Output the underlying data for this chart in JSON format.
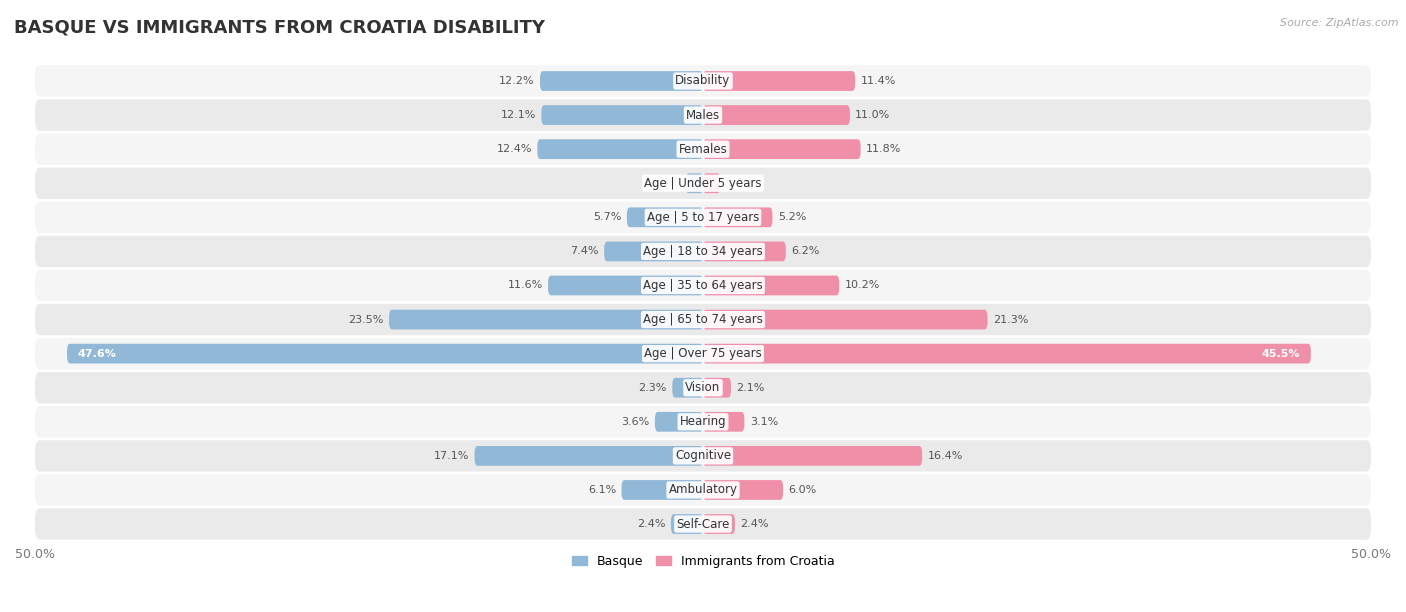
{
  "title": "BASQUE VS IMMIGRANTS FROM CROATIA DISABILITY",
  "source": "Source: ZipAtlas.com",
  "categories": [
    "Disability",
    "Males",
    "Females",
    "Age | Under 5 years",
    "Age | 5 to 17 years",
    "Age | 18 to 34 years",
    "Age | 35 to 64 years",
    "Age | 65 to 74 years",
    "Age | Over 75 years",
    "Vision",
    "Hearing",
    "Cognitive",
    "Ambulatory",
    "Self-Care"
  ],
  "basque_values": [
    12.2,
    12.1,
    12.4,
    1.3,
    5.7,
    7.4,
    11.6,
    23.5,
    47.6,
    2.3,
    3.6,
    17.1,
    6.1,
    2.4
  ],
  "croatia_values": [
    11.4,
    11.0,
    11.8,
    1.3,
    5.2,
    6.2,
    10.2,
    21.3,
    45.5,
    2.1,
    3.1,
    16.4,
    6.0,
    2.4
  ],
  "basque_color": "#92b8d8",
  "croatia_color": "#f090a8",
  "basque_label": "Basque",
  "croatia_label": "Immigrants from Croatia",
  "max_scale": 50.0,
  "axis_label_left": "50.0%",
  "axis_label_right": "50.0%",
  "bar_height": 0.58,
  "row_bg_light": "#f5f5f5",
  "row_bg_dark": "#eaeaea",
  "title_fontsize": 13,
  "label_fontsize": 8.5,
  "value_fontsize": 8.0
}
